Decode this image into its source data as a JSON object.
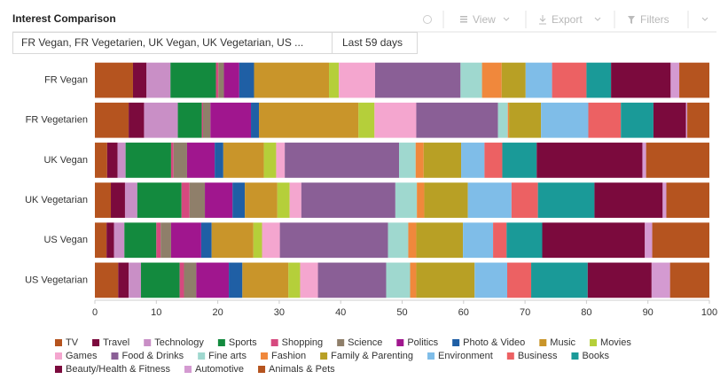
{
  "toolbar": {
    "buttons": [
      "View",
      "Export",
      "Filters"
    ]
  },
  "tabs": [
    "FR Vegan, FR Vegetarien, UK Vegan, UK Vegetarian, US ...",
    "Last 59 days"
  ],
  "chart_data": {
    "type": "bar",
    "orientation": "horizontal",
    "stacked": true,
    "title": "Interest Comparison",
    "categories": [
      "FR Vegan",
      "FR Vegetarien",
      "UK Vegan",
      "UK Vegetarian",
      "US Vegan",
      "US Vegetarian"
    ],
    "xlim": [
      0,
      100
    ],
    "xticks": [
      0,
      10,
      20,
      30,
      40,
      50,
      60,
      70,
      80,
      90,
      100
    ],
    "series": [
      {
        "name": "TV",
        "color": "#b5541f",
        "values": [
          6.2,
          5.5,
          2.0,
          2.6,
          1.9,
          3.8
        ]
      },
      {
        "name": "Travel",
        "color": "#7b0a3d",
        "values": [
          2.2,
          2.5,
          1.7,
          2.3,
          1.2,
          1.7
        ]
      },
      {
        "name": "Technology",
        "color": "#c98fc6",
        "values": [
          3.9,
          5.5,
          1.3,
          2.0,
          1.7,
          2.0
        ]
      },
      {
        "name": "Sports",
        "color": "#138a3e",
        "values": [
          7.4,
          3.9,
          7.4,
          7.2,
          5.2,
          6.3
        ]
      },
      {
        "name": "Shopping",
        "color": "#d6497f",
        "values": [
          0.4,
          0.2,
          0.4,
          1.3,
          0.7,
          0.7
        ]
      },
      {
        "name": "Science",
        "color": "#8f7f6a",
        "values": [
          0.9,
          1.2,
          2.2,
          2.5,
          1.7,
          2.0
        ]
      },
      {
        "name": "Politics",
        "color": "#a0168e",
        "values": [
          2.5,
          6.6,
          4.5,
          4.5,
          4.9,
          5.3
        ]
      },
      {
        "name": "Photo & Video",
        "color": "#1f5fa5",
        "values": [
          2.4,
          1.3,
          1.4,
          2.0,
          1.7,
          2.2
        ]
      },
      {
        "name": "Music",
        "color": "#c9952a",
        "values": [
          12.2,
          16.2,
          6.6,
          5.3,
          6.8,
          7.5
        ]
      },
      {
        "name": "Movies",
        "color": "#b5cf3a",
        "values": [
          1.6,
          2.6,
          2.0,
          2.0,
          1.4,
          1.9
        ]
      },
      {
        "name": "Games",
        "color": "#f4a6cf",
        "values": [
          5.9,
          6.8,
          1.4,
          1.9,
          2.9,
          2.9
        ]
      },
      {
        "name": "Food & Drinks",
        "color": "#8a5f96",
        "values": [
          13.9,
          13.3,
          18.6,
          15.3,
          17.6,
          11.1
        ]
      },
      {
        "name": "Fine arts",
        "color": "#9fd8cf",
        "values": [
          3.5,
          1.6,
          2.7,
          3.5,
          3.3,
          3.9
        ]
      },
      {
        "name": "Fashion",
        "color": "#f0883c",
        "values": [
          3.2,
          0.2,
          1.3,
          1.2,
          1.3,
          1.0
        ]
      },
      {
        "name": "Family & Parenting",
        "color": "#b8a025",
        "values": [
          3.9,
          5.2,
          6.1,
          7.1,
          7.6,
          9.5
        ]
      },
      {
        "name": "Environment",
        "color": "#7fbde8",
        "values": [
          4.3,
          7.7,
          3.8,
          7.1,
          4.9,
          5.3
        ]
      },
      {
        "name": "Business",
        "color": "#ec6163",
        "values": [
          5.6,
          5.3,
          2.9,
          4.3,
          2.2,
          3.9
        ]
      },
      {
        "name": "Books",
        "color": "#1a9a98",
        "values": [
          4.0,
          5.3,
          5.6,
          9.2,
          5.8,
          9.2
        ]
      },
      {
        "name": "Beauty/Health & Fitness",
        "color": "#7b0a3d",
        "values": [
          9.7,
          5.3,
          17.2,
          11.1,
          16.7,
          10.4
        ]
      },
      {
        "name": "Automotive",
        "color": "#d49ad1",
        "values": [
          1.4,
          0.2,
          0.6,
          0.6,
          1.2,
          3.0
        ]
      },
      {
        "name": "Animals & Pets",
        "color": "#b5541f",
        "values": [
          4.9,
          3.6,
          10.3,
          7.0,
          9.3,
          6.4
        ]
      }
    ]
  }
}
